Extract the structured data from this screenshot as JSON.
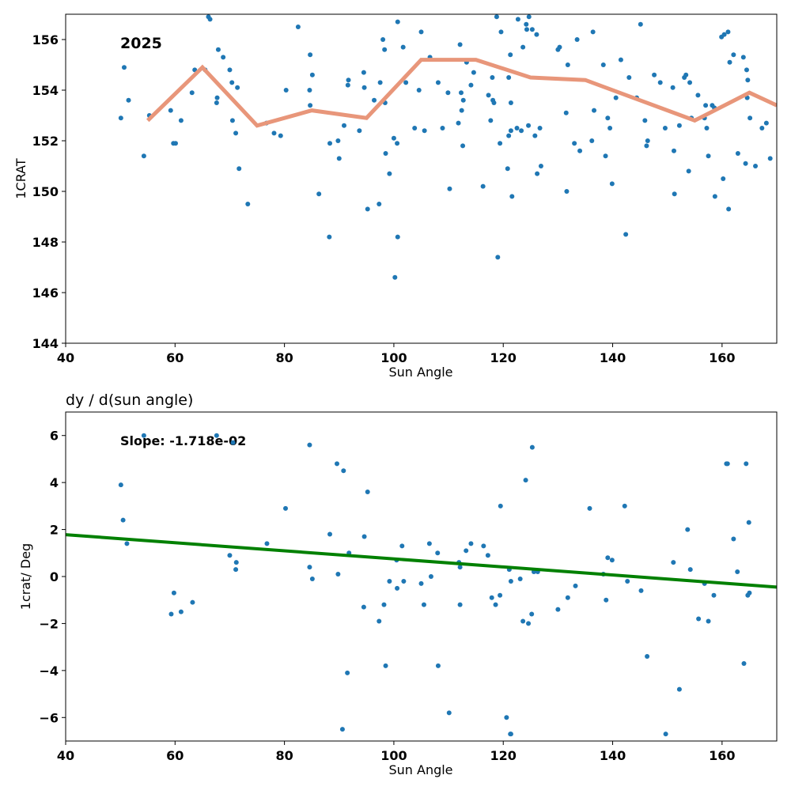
{
  "chart_data": [
    {
      "type": "scatter",
      "title": "",
      "annotation": "2025",
      "xlabel": "Sun Angle",
      "ylabel": "1CRAT",
      "xlim": [
        40,
        170
      ],
      "ylim": [
        144,
        157
      ],
      "xticks": [
        40,
        60,
        80,
        100,
        120,
        140,
        160
      ],
      "yticks": [
        144,
        146,
        148,
        150,
        152,
        154,
        156
      ],
      "grid": false,
      "colors": {
        "points": "#1f77b4",
        "trend": "#e8967a"
      },
      "series": [
        {
          "kind": "points",
          "x": [
            50.1,
            50.7,
            51.5,
            54.3,
            55.3,
            59.2,
            59.7,
            60.1,
            61.1,
            63.1,
            63.6,
            65.5,
            66.1,
            66.4,
            67.6,
            67.7,
            67.9,
            68.8,
            70.0,
            70.4,
            70.5,
            71.1,
            71.4,
            71.7,
            73.3,
            76.7,
            78.1,
            79.3,
            80.3,
            82.5,
            84.6,
            84.7,
            84.7,
            85.1,
            86.3,
            88.2,
            88.3,
            89.8,
            90.0,
            90.9,
            91.6,
            91.7,
            93.7,
            94.5,
            94.6,
            95.2,
            96.4,
            97.3,
            97.5,
            98.0,
            98.3,
            98.4,
            98.5,
            99.2,
            100.0,
            100.2,
            100.6,
            100.7,
            100.7,
            101.7,
            102.2,
            103.8,
            104.6,
            105.0,
            105.6,
            106.6,
            108.1,
            108.9,
            109.9,
            110.2,
            111.8,
            112.1,
            112.3,
            112.4,
            112.6,
            112.7,
            113.3,
            114.1,
            114.6,
            116.3,
            117.3,
            117.7,
            118.0,
            118.1,
            118.3,
            118.8,
            119.0,
            119.4,
            119.6,
            120.8,
            121.0,
            121.0,
            121.3,
            121.4,
            121.4,
            121.6,
            122.5,
            122.7,
            123.3,
            123.6,
            124.2,
            124.3,
            124.6,
            124.7,
            125.3,
            125.8,
            126.1,
            126.2,
            126.7,
            126.9,
            130.0,
            130.3,
            131.5,
            131.6,
            131.8,
            133.0,
            133.5,
            134.0,
            136.2,
            136.4,
            136.6,
            138.3,
            138.7,
            139.1,
            139.5,
            139.9,
            140.6,
            141.5,
            142.4,
            143.0,
            144.4,
            145.1,
            145.9,
            146.2,
            146.4,
            147.6,
            148.7,
            149.6,
            151.0,
            151.2,
            151.3,
            152.2,
            153.1,
            153.4,
            153.9,
            154.1,
            154.4,
            155.6,
            156.8,
            157.0,
            157.2,
            157.5,
            158.2,
            158.6,
            158.7,
            159.9,
            160.2,
            160.4,
            161.1,
            161.2,
            161.4,
            162.1,
            162.9,
            163.9,
            164.3,
            164.5,
            164.6,
            164.7,
            165.1,
            166.1,
            167.3,
            168.1,
            168.8
          ],
          "y": [
            152.9,
            154.9,
            153.6,
            151.4,
            153.0,
            153.2,
            151.9,
            151.9,
            152.8,
            153.9,
            154.8,
            154.8,
            156.9,
            156.8,
            153.5,
            153.7,
            155.6,
            155.3,
            154.8,
            154.3,
            152.8,
            152.3,
            154.1,
            150.9,
            149.5,
            152.7,
            152.3,
            152.2,
            154.0,
            156.5,
            154.0,
            153.4,
            155.4,
            154.6,
            149.9,
            148.2,
            151.9,
            152.0,
            151.3,
            152.6,
            154.2,
            154.4,
            152.4,
            154.7,
            154.1,
            149.3,
            153.6,
            149.5,
            154.3,
            156.0,
            155.6,
            153.5,
            151.5,
            150.7,
            152.1,
            146.6,
            151.9,
            148.2,
            156.7,
            155.7,
            154.3,
            152.5,
            154.0,
            156.3,
            152.4,
            155.3,
            154.3,
            152.5,
            153.9,
            150.1,
            152.7,
            155.8,
            153.9,
            153.2,
            151.8,
            153.6,
            155.1,
            154.2,
            154.7,
            150.2,
            153.8,
            152.8,
            154.5,
            153.6,
            153.5,
            156.9,
            147.4,
            151.9,
            156.3,
            150.9,
            154.5,
            152.2,
            155.4,
            153.5,
            152.4,
            149.8,
            152.5,
            156.8,
            152.4,
            155.7,
            156.6,
            156.4,
            152.6,
            156.9,
            156.4,
            152.2,
            156.2,
            150.7,
            152.5,
            151.0,
            155.6,
            155.7,
            153.1,
            150.0,
            155.0,
            151.9,
            156.0,
            151.6,
            152.0,
            156.3,
            153.2,
            155.0,
            151.4,
            152.9,
            152.5,
            150.3,
            153.7,
            155.2,
            148.3,
            154.5,
            153.7,
            156.6,
            152.8,
            151.8,
            152.0,
            154.6,
            154.3,
            152.5,
            154.1,
            151.6,
            149.9,
            152.6,
            154.5,
            154.6,
            150.8,
            154.3,
            152.9,
            153.8,
            152.9,
            153.4,
            152.5,
            151.4,
            153.4,
            153.3,
            149.8,
            156.1,
            150.5,
            156.2,
            156.3,
            149.3,
            155.1,
            155.4,
            151.5,
            155.3,
            151.1,
            154.8,
            153.7,
            154.4,
            152.9,
            151.0,
            152.5,
            152.7,
            151.3
          ]
        },
        {
          "kind": "trend-line",
          "x": [
            55,
            65,
            75,
            85,
            95,
            105,
            115,
            125,
            135,
            145,
            155,
            165,
            170
          ],
          "y": [
            152.8,
            154.9,
            152.6,
            153.2,
            152.9,
            155.2,
            155.2,
            154.5,
            154.4,
            153.6,
            152.8,
            153.9,
            153.4
          ]
        }
      ]
    },
    {
      "type": "scatter",
      "title": "dy / d(sun angle)",
      "annotation": "Slope: -1.718e-02",
      "xlabel": "Sun Angle",
      "ylabel": "1crat/ Deg",
      "xlim": [
        40,
        170
      ],
      "ylim": [
        -7,
        7
      ],
      "xticks": [
        40,
        60,
        80,
        100,
        120,
        140,
        160
      ],
      "yticks": [
        -6,
        -4,
        -2,
        0,
        2,
        4,
        6
      ],
      "grid": false,
      "colors": {
        "points": "#1f77b4",
        "fit": "#008000"
      },
      "series": [
        {
          "kind": "points",
          "x": [
            50.1,
            50.5,
            51.2,
            54.3,
            59.3,
            59.8,
            61.1,
            63.2,
            67.6,
            70.0,
            70.6,
            71.1,
            71.2,
            76.8,
            80.2,
            84.6,
            84.6,
            85.1,
            88.3,
            89.6,
            89.8,
            90.6,
            90.8,
            91.5,
            91.8,
            94.5,
            94.6,
            95.2,
            97.3,
            98.2,
            98.5,
            99.2,
            100.5,
            100.6,
            101.5,
            101.8,
            105.0,
            105.5,
            106.5,
            106.8,
            108.0,
            108.1,
            110.1,
            111.9,
            112.1,
            112.1,
            113.2,
            114.1,
            116.4,
            117.2,
            117.9,
            118.6,
            119.4,
            119.5,
            120.6,
            121.1,
            121.3,
            121.4,
            121.4,
            123.1,
            123.6,
            124.1,
            124.6,
            125.2,
            125.3,
            125.6,
            126.3,
            130.0,
            131.8,
            133.2,
            135.8,
            138.3,
            138.8,
            139.1,
            139.9,
            142.2,
            142.7,
            145.2,
            146.3,
            149.7,
            151.1,
            152.2,
            153.7,
            154.2,
            155.7,
            156.8,
            157.5,
            158.5,
            160.8,
            161.0,
            162.1,
            162.8,
            164.0,
            164.4,
            164.7,
            164.9,
            165.0
          ],
          "y": [
            3.9,
            2.4,
            1.4,
            6.0,
            -1.6,
            -0.7,
            -1.5,
            -1.1,
            6.0,
            0.9,
            5.7,
            0.3,
            0.6,
            1.4,
            2.9,
            0.4,
            5.6,
            -0.1,
            1.8,
            4.8,
            0.1,
            -6.5,
            4.5,
            -4.1,
            1.0,
            -1.3,
            1.7,
            3.6,
            -1.9,
            -1.2,
            -3.8,
            -0.2,
            0.7,
            -0.5,
            1.3,
            -0.2,
            -0.3,
            -1.2,
            1.4,
            0.0,
            1.0,
            -3.8,
            -5.8,
            0.6,
            0.4,
            -1.2,
            1.1,
            1.4,
            1.3,
            0.9,
            -0.9,
            -1.2,
            -0.8,
            3.0,
            -6.0,
            0.3,
            -6.7,
            -0.2,
            -6.7,
            -0.1,
            -1.9,
            4.1,
            -2.0,
            -1.6,
            5.5,
            0.2,
            0.2,
            -1.4,
            -0.9,
            -0.4,
            2.9,
            0.1,
            -1.0,
            0.8,
            0.7,
            3.0,
            -0.2,
            -0.6,
            -3.4,
            -6.7,
            0.6,
            -4.8,
            2.0,
            0.3,
            -1.8,
            -0.3,
            -1.9,
            -0.8,
            4.8,
            4.8,
            1.6,
            0.2,
            -3.7,
            4.8,
            -0.8,
            2.3,
            -0.7
          ]
        },
        {
          "kind": "fit-line",
          "x": [
            40,
            170
          ],
          "y": [
            1.78,
            -0.45
          ]
        }
      ]
    }
  ]
}
